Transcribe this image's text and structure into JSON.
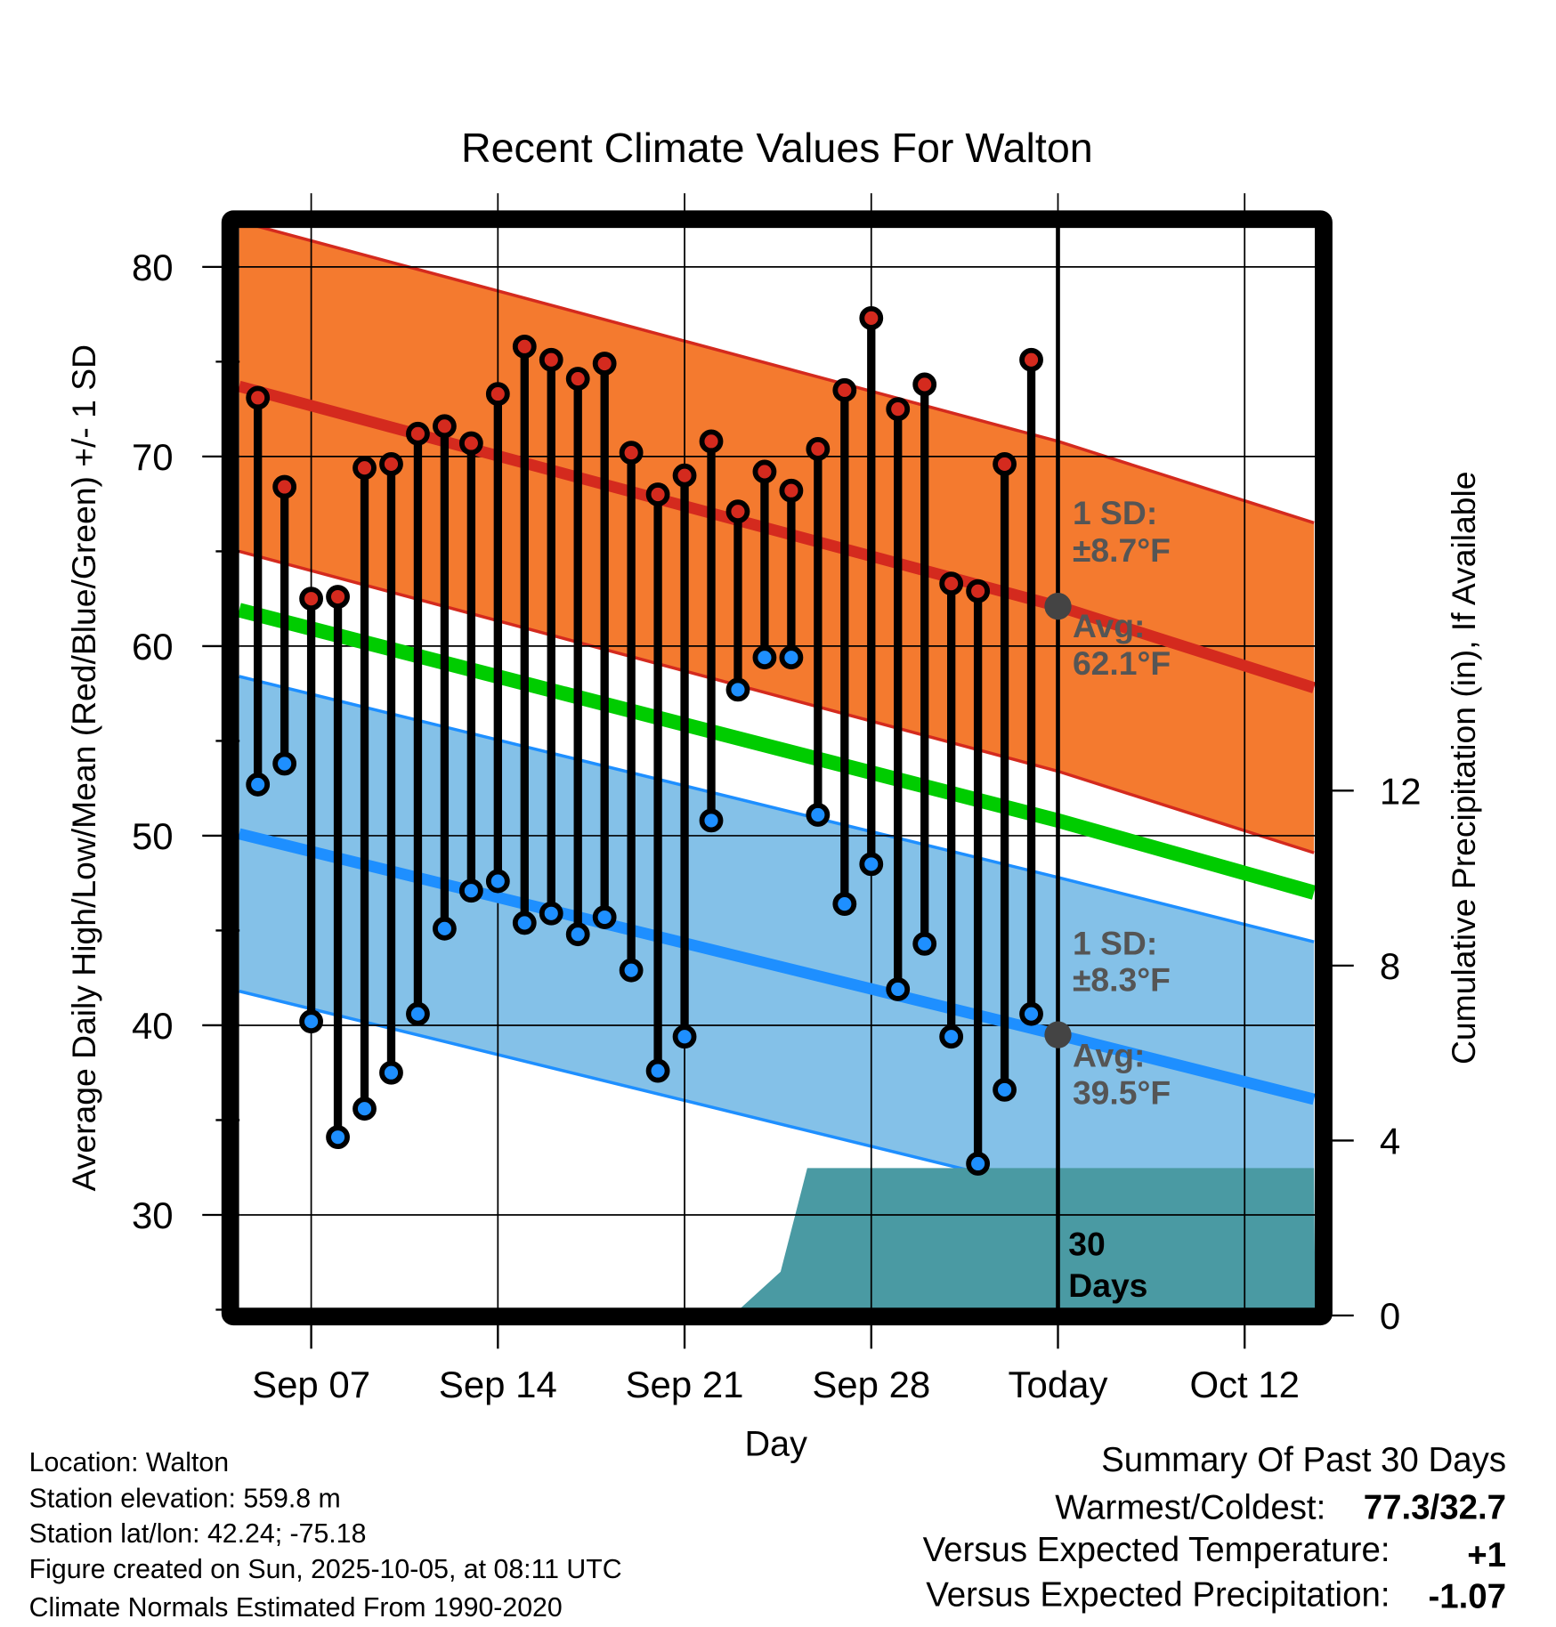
{
  "chart_data": {
    "type": "line",
    "title": "Recent Climate Values For Walton",
    "xlabel": "Day",
    "ylabel": "Average Daily High/Low/Mean (Red/Blue/Green) +/- 1 SD",
    "y2label": "Cumulative Precipitation (in), If Available",
    "ylim": [
      25,
      82
    ],
    "y2lim": [
      0,
      14.6
    ],
    "yticks": [
      "30",
      "40",
      "50",
      "60",
      "70",
      "80"
    ],
    "y2ticks": [
      "0",
      "4",
      "8",
      "12"
    ],
    "xticks": [
      {
        "label": "Sep 07",
        "day": 7
      },
      {
        "label": "Sep 14",
        "day": 14
      },
      {
        "label": "Sep 21",
        "day": 21
      },
      {
        "label": "Sep 28",
        "day": 28
      },
      {
        "label": "Today",
        "day": 35
      },
      {
        "label": "Oct 12",
        "day": 42
      }
    ],
    "x_day_note": "day 1 = Sep 01",
    "xlim": [
      4.3,
      44.6
    ],
    "grid": true,
    "observed": {
      "days": [
        5,
        6,
        7,
        8,
        9,
        10,
        11,
        12,
        13,
        14,
        15,
        16,
        17,
        18,
        19,
        20,
        21,
        22,
        23,
        24,
        25,
        26,
        27,
        28,
        29,
        30,
        31,
        32,
        33,
        34
      ],
      "high": [
        73.1,
        68.4,
        62.5,
        62.6,
        69.4,
        69.6,
        71.2,
        71.6,
        70.7,
        73.3,
        75.8,
        75.1,
        74.1,
        74.9,
        70.2,
        68.0,
        69.0,
        70.8,
        67.1,
        69.2,
        68.2,
        70.4,
        73.5,
        77.3,
        72.5,
        73.8,
        63.3,
        62.9,
        69.6,
        75.1
      ],
      "low": [
        52.7,
        53.8,
        40.2,
        34.1,
        35.6,
        37.5,
        40.6,
        45.1,
        47.1,
        47.6,
        45.4,
        45.9,
        44.8,
        45.7,
        42.9,
        37.6,
        39.4,
        50.8,
        57.7,
        59.4,
        59.4,
        51.1,
        46.4,
        48.5,
        41.9,
        44.3,
        39.4,
        32.7,
        36.6,
        40.6
      ]
    },
    "normals": {
      "days": [
        4.3,
        35,
        44.6
      ],
      "high_avg": [
        73.7,
        62.1,
        57.8
      ],
      "low_avg": [
        50.1,
        39.5,
        36.1
      ],
      "mean_avg": [
        61.9,
        50.8,
        47.0
      ],
      "high_sd": 8.7,
      "low_sd": 8.3
    },
    "precipitation": {
      "days": [
        22.8,
        24.6,
        25.6,
        44.6
      ],
      "cumulative": [
        0,
        1.0,
        3.37,
        3.37
      ]
    },
    "annotations": {
      "high_sd_1": "1 SD:",
      "high_sd_2": "±8.7°F",
      "high_avg_1": "Avg:",
      "high_avg_2": "62.1°F",
      "low_sd_1": "1 SD:",
      "low_sd_2": "±8.3°F",
      "low_avg_1": "Avg:",
      "low_avg_2": "39.5°F",
      "window_1": "30",
      "window_2": "Days"
    },
    "colors": {
      "high": "#d42a1e",
      "high_band": "#f47a2f",
      "low": "#1e8fff",
      "low_band": "#84c1e8",
      "mean": "#00cc00",
      "precip": "#4a9aa3"
    }
  },
  "info": [
    "Location: Walton",
    "Station elevation: 559.8 m",
    "Station lat/lon: 42.24; -75.18",
    "Figure created on Sun, 2025-10-05, at 08:11 UTC",
    "Climate Normals Estimated From 1990-2020"
  ],
  "summary": {
    "title": "Summary Of Past 30 Days",
    "warmest_label": "Warmest/Coldest:",
    "warmest_value": "77.3/32.7",
    "temp_label": "Versus Expected Temperature:",
    "temp_value": "+1",
    "precip_label": "Versus Expected Precipitation:",
    "precip_value": "-1.07"
  }
}
